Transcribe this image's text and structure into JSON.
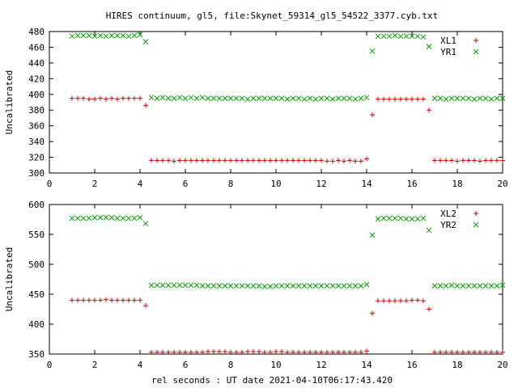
{
  "title": "HIRES continuum, gl5, file:Skynet_59314_gl5_54522_3377.cyb.txt",
  "xlabel": "rel seconds : UT date 2021-04-10T06:17:43.420",
  "chart_data": [
    {
      "type": "scatter",
      "ylabel": "Uncalibrated",
      "xlim": [
        0,
        20
      ],
      "ylim": [
        300,
        480
      ],
      "xticks": [
        0,
        2,
        4,
        6,
        8,
        10,
        12,
        14,
        16,
        18,
        20
      ],
      "yticks": [
        300,
        320,
        340,
        360,
        380,
        400,
        420,
        440,
        460,
        480
      ],
      "legend_position": "top-right",
      "series": [
        {
          "name": "XL1",
          "marker": "plus",
          "color": "#d00000",
          "x": [
            1.0,
            1.25,
            1.5,
            1.75,
            2.0,
            2.25,
            2.5,
            2.75,
            3.0,
            3.25,
            3.5,
            3.75,
            4.0,
            4.25,
            4.5,
            4.75,
            5.0,
            5.25,
            5.5,
            5.75,
            6.0,
            6.25,
            6.5,
            6.75,
            7.0,
            7.25,
            7.5,
            7.75,
            8.0,
            8.25,
            8.5,
            8.75,
            9.0,
            9.25,
            9.5,
            9.75,
            10.0,
            10.25,
            10.5,
            10.75,
            11.0,
            11.25,
            11.5,
            11.75,
            12.0,
            12.25,
            12.5,
            12.75,
            13.0,
            13.25,
            13.5,
            13.75,
            14.0,
            14.25,
            14.5,
            14.75,
            15.0,
            15.25,
            15.5,
            15.75,
            16.0,
            16.25,
            16.5,
            16.75,
            17.0,
            17.25,
            17.5,
            17.75,
            18.0,
            18.25,
            18.5,
            18.75,
            19.0,
            19.25,
            19.5,
            19.75,
            20.0
          ],
          "y": [
            395,
            395,
            395,
            394,
            394,
            395,
            394,
            395,
            394,
            395,
            395,
            395,
            395,
            386,
            316,
            316,
            316,
            316,
            315,
            316,
            316,
            316,
            316,
            316,
            316,
            316,
            316,
            316,
            316,
            316,
            316,
            316,
            316,
            316,
            316,
            316,
            316,
            316,
            316,
            316,
            316,
            316,
            316,
            316,
            316,
            315,
            315,
            316,
            315,
            316,
            315,
            315,
            318,
            374,
            394,
            394,
            394,
            394,
            394,
            394,
            394,
            394,
            394,
            380,
            316,
            316,
            316,
            316,
            315,
            316,
            316,
            316,
            315,
            316,
            316,
            316,
            316
          ]
        },
        {
          "name": "YR1",
          "marker": "cross",
          "color": "#00a000",
          "x": [
            1.0,
            1.25,
            1.5,
            1.75,
            2.0,
            2.25,
            2.5,
            2.75,
            3.0,
            3.25,
            3.5,
            3.75,
            4.0,
            4.25,
            4.5,
            4.75,
            5.0,
            5.25,
            5.5,
            5.75,
            6.0,
            6.25,
            6.5,
            6.75,
            7.0,
            7.25,
            7.5,
            7.75,
            8.0,
            8.25,
            8.5,
            8.75,
            9.0,
            9.25,
            9.5,
            9.75,
            10.0,
            10.25,
            10.5,
            10.75,
            11.0,
            11.25,
            11.5,
            11.75,
            12.0,
            12.25,
            12.5,
            12.75,
            13.0,
            13.25,
            13.5,
            13.75,
            14.0,
            14.25,
            14.5,
            14.75,
            15.0,
            15.25,
            15.5,
            15.75,
            16.0,
            16.25,
            16.5,
            16.75,
            17.0,
            17.25,
            17.5,
            17.75,
            18.0,
            18.25,
            18.5,
            18.75,
            19.0,
            19.25,
            19.5,
            19.75,
            20.0
          ],
          "y": [
            474,
            475,
            475,
            475,
            474,
            475,
            474,
            475,
            475,
            475,
            474,
            475,
            476,
            467,
            396,
            395,
            396,
            395,
            395,
            396,
            395,
            396,
            395,
            396,
            395,
            395,
            395,
            395,
            395,
            395,
            395,
            394,
            395,
            395,
            395,
            395,
            395,
            395,
            394,
            395,
            395,
            394,
            395,
            394,
            395,
            395,
            394,
            395,
            395,
            395,
            394,
            395,
            396,
            455,
            474,
            474,
            474,
            475,
            474,
            474,
            474,
            474,
            473,
            461,
            395,
            395,
            394,
            395,
            395,
            395,
            395,
            394,
            395,
            395,
            394,
            395,
            395
          ]
        }
      ]
    },
    {
      "type": "scatter",
      "ylabel": "Uncalibrated",
      "xlim": [
        0,
        20
      ],
      "ylim": [
        350,
        600
      ],
      "xticks": [
        0,
        2,
        4,
        6,
        8,
        10,
        12,
        14,
        16,
        18,
        20
      ],
      "yticks": [
        350,
        400,
        450,
        500,
        550,
        600
      ],
      "legend_position": "top-right",
      "series": [
        {
          "name": "XL2",
          "marker": "plus",
          "color": "#d00000",
          "x": [
            1.0,
            1.25,
            1.5,
            1.75,
            2.0,
            2.25,
            2.5,
            2.75,
            3.0,
            3.25,
            3.5,
            3.75,
            4.0,
            4.25,
            4.5,
            4.75,
            5.0,
            5.25,
            5.5,
            5.75,
            6.0,
            6.25,
            6.5,
            6.75,
            7.0,
            7.25,
            7.5,
            7.75,
            8.0,
            8.25,
            8.5,
            8.75,
            9.0,
            9.25,
            9.5,
            9.75,
            10.0,
            10.25,
            10.5,
            10.75,
            11.0,
            11.25,
            11.5,
            11.75,
            12.0,
            12.25,
            12.5,
            12.75,
            13.0,
            13.25,
            13.5,
            13.75,
            14.0,
            14.25,
            14.5,
            14.75,
            15.0,
            15.25,
            15.5,
            15.75,
            16.0,
            16.25,
            16.5,
            16.75,
            17.0,
            17.25,
            17.5,
            17.75,
            18.0,
            18.25,
            18.5,
            18.75,
            19.0,
            19.25,
            19.5,
            19.75,
            20.0
          ],
          "y": [
            440,
            440,
            440,
            440,
            440,
            440,
            441,
            440,
            440,
            440,
            440,
            440,
            440,
            431,
            353,
            353,
            353,
            353,
            353,
            353,
            353,
            353,
            353,
            353,
            354,
            354,
            354,
            354,
            353,
            353,
            353,
            354,
            354,
            354,
            353,
            353,
            354,
            354,
            353,
            353,
            353,
            353,
            353,
            353,
            353,
            353,
            353,
            353,
            353,
            353,
            353,
            353,
            355,
            418,
            439,
            439,
            439,
            439,
            439,
            439,
            440,
            440,
            439,
            425,
            353,
            353,
            353,
            353,
            353,
            353,
            353,
            353,
            353,
            353,
            353,
            353,
            353
          ]
        },
        {
          "name": "YR2",
          "marker": "cross",
          "color": "#00a000",
          "x": [
            1.0,
            1.25,
            1.5,
            1.75,
            2.0,
            2.25,
            2.5,
            2.75,
            3.0,
            3.25,
            3.5,
            3.75,
            4.0,
            4.25,
            4.5,
            4.75,
            5.0,
            5.25,
            5.5,
            5.75,
            6.0,
            6.25,
            6.5,
            6.75,
            7.0,
            7.25,
            7.5,
            7.75,
            8.0,
            8.25,
            8.5,
            8.75,
            9.0,
            9.25,
            9.5,
            9.75,
            10.0,
            10.25,
            10.5,
            10.75,
            11.0,
            11.25,
            11.5,
            11.75,
            12.0,
            12.25,
            12.5,
            12.75,
            13.0,
            13.25,
            13.5,
            13.75,
            14.0,
            14.25,
            14.5,
            14.75,
            15.0,
            15.25,
            15.5,
            15.75,
            16.0,
            16.25,
            16.5,
            16.75,
            17.0,
            17.25,
            17.5,
            17.75,
            18.0,
            18.25,
            18.5,
            18.75,
            19.0,
            19.25,
            19.5,
            19.75,
            20.0
          ],
          "y": [
            577,
            577,
            577,
            577,
            578,
            578,
            578,
            578,
            577,
            577,
            577,
            577,
            578,
            568,
            465,
            465,
            465,
            465,
            465,
            465,
            465,
            465,
            465,
            464,
            464,
            464,
            464,
            464,
            464,
            464,
            464,
            464,
            464,
            464,
            463,
            463,
            464,
            464,
            464,
            464,
            464,
            464,
            464,
            464,
            464,
            464,
            464,
            464,
            464,
            464,
            464,
            464,
            466,
            549,
            576,
            577,
            577,
            577,
            577,
            576,
            576,
            576,
            577,
            557,
            464,
            464,
            464,
            465,
            464,
            464,
            464,
            464,
            464,
            464,
            464,
            464,
            465
          ]
        }
      ]
    }
  ]
}
